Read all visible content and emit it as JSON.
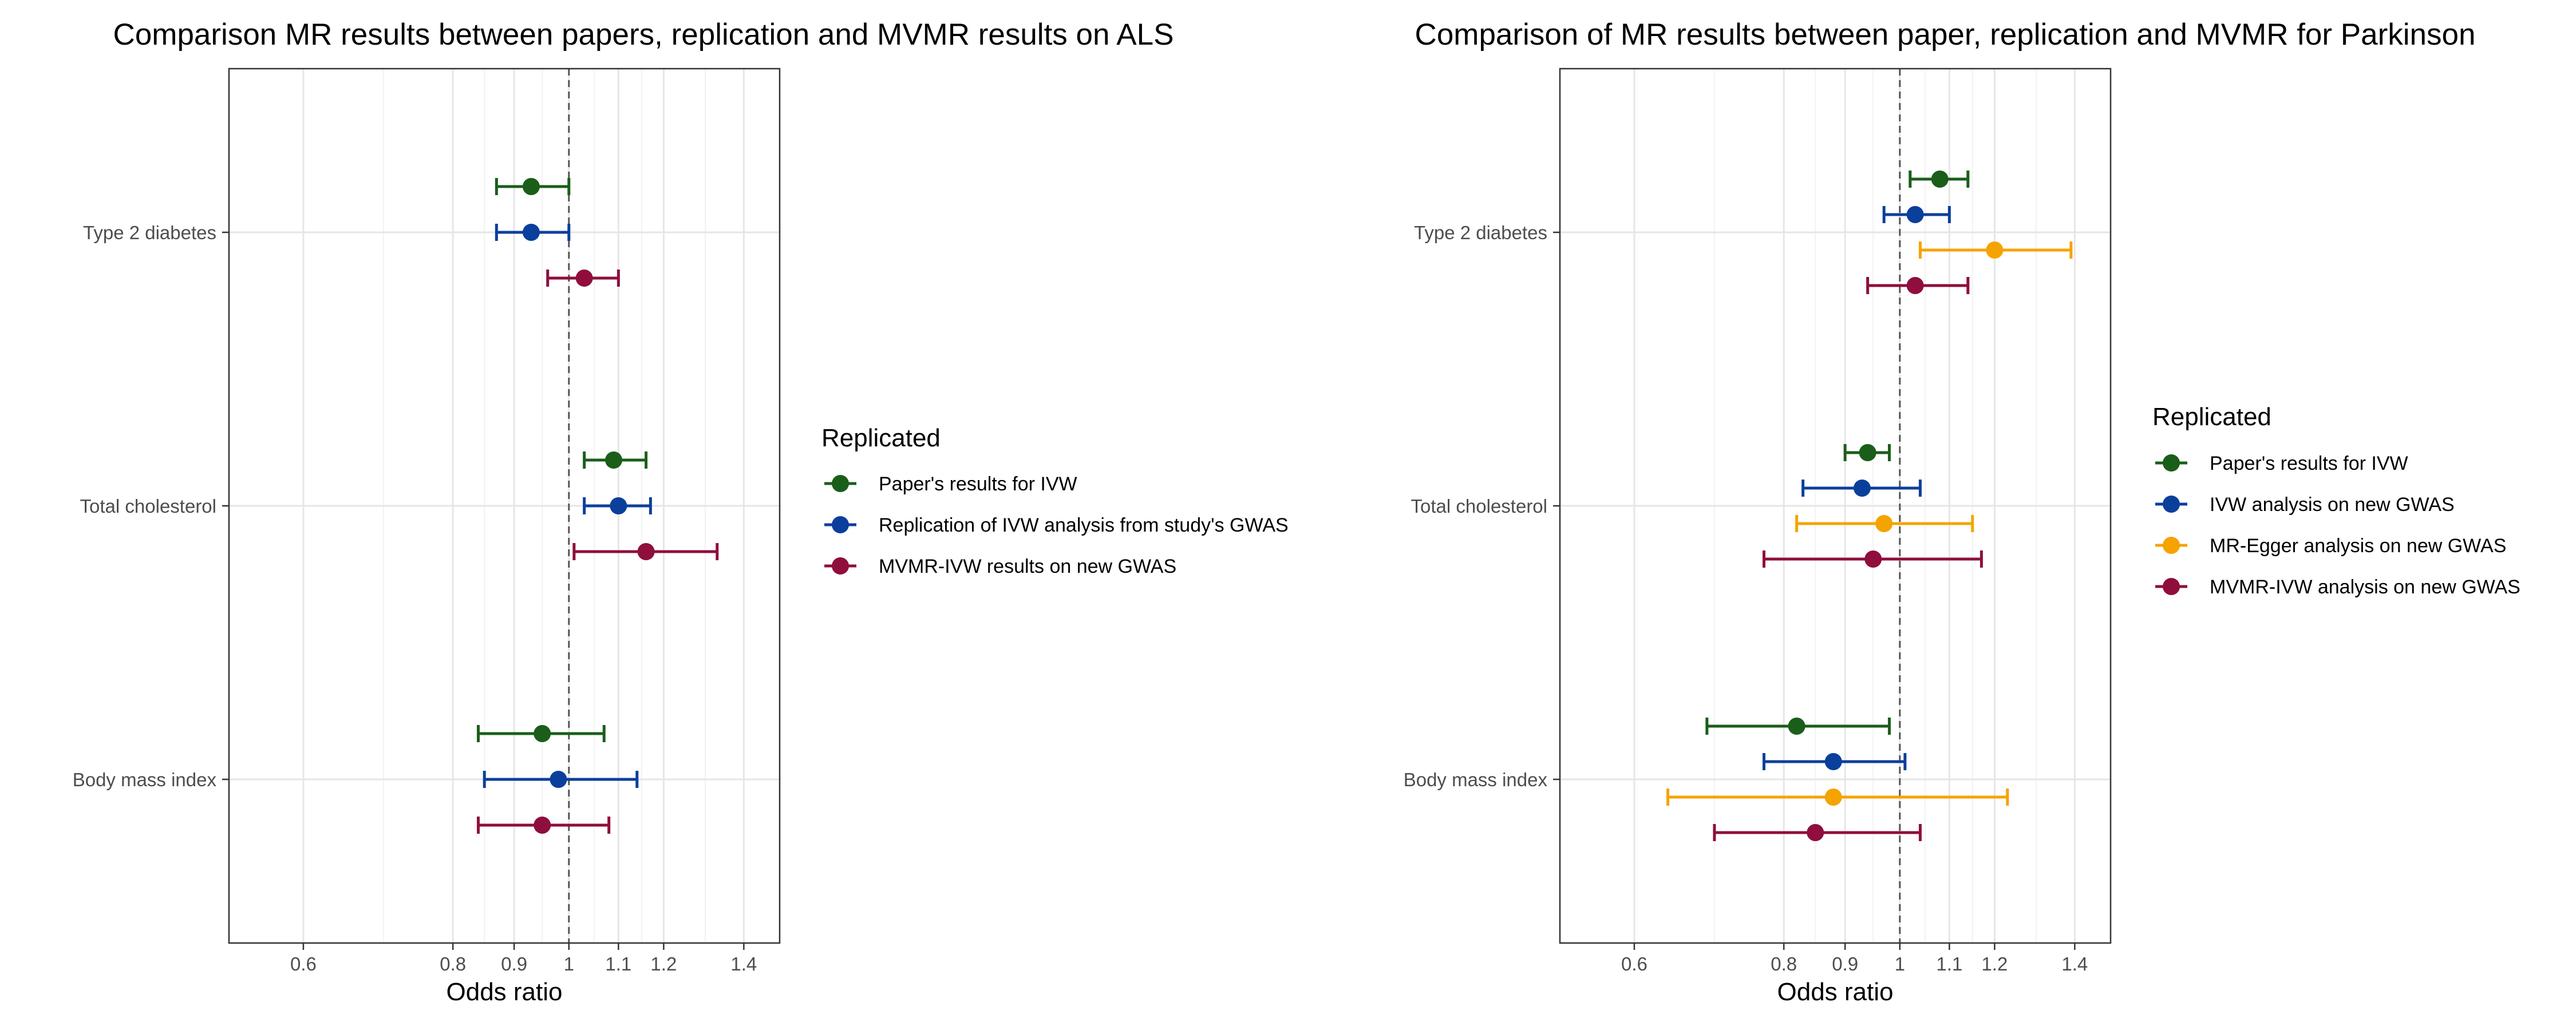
{
  "chart_data": [
    {
      "type": "forest",
      "title": "Comparison MR results between papers, replication and MVMR results on ALS",
      "xlabel": "Odds ratio",
      "ylabel": "",
      "xscale": "log",
      "xlim": [
        0.52,
        1.5
      ],
      "xticks": [
        "0.6",
        "0.8",
        "0.9",
        "1",
        "1.1",
        "1.2",
        "1.4"
      ],
      "reference_line": 1,
      "categories": [
        "Type 2 diabetes",
        "Total cholesterol",
        "Body mass index"
      ],
      "legend": {
        "title": "Replicated",
        "position": "right"
      },
      "series": [
        {
          "name": "Paper's results for IVW",
          "color": "#1a5e1a",
          "points": [
            {
              "category": "Type 2 diabetes",
              "or": 0.93,
              "lo": 0.87,
              "hi": 1.0
            },
            {
              "category": "Total cholesterol",
              "or": 1.09,
              "lo": 1.03,
              "hi": 1.16
            },
            {
              "category": "Body mass index",
              "or": 0.95,
              "lo": 0.84,
              "hi": 1.07
            }
          ]
        },
        {
          "name": "Replication of IVW analysis from study's GWAS",
          "color": "#0b3f9c",
          "points": [
            {
              "category": "Type 2 diabetes",
              "or": 0.93,
              "lo": 0.87,
              "hi": 1.0
            },
            {
              "category": "Total cholesterol",
              "or": 1.1,
              "lo": 1.03,
              "hi": 1.17
            },
            {
              "category": "Body mass index",
              "or": 0.98,
              "lo": 0.85,
              "hi": 1.14
            }
          ]
        },
        {
          "name": "MVMR-IVW results on new GWAS",
          "color": "#8f0e3e",
          "points": [
            {
              "category": "Type 2 diabetes",
              "or": 1.03,
              "lo": 0.96,
              "hi": 1.1
            },
            {
              "category": "Total cholesterol",
              "or": 1.16,
              "lo": 1.01,
              "hi": 1.33
            },
            {
              "category": "Body mass index",
              "or": 0.95,
              "lo": 0.84,
              "hi": 1.08
            }
          ]
        }
      ]
    },
    {
      "type": "forest",
      "title": "Comparison of MR results between paper, replication and MVMR for Parkinson",
      "xlabel": "Odds ratio",
      "ylabel": "",
      "xscale": "log",
      "xlim": [
        0.52,
        1.5
      ],
      "xticks": [
        "0.6",
        "0.8",
        "0.9",
        "1",
        "1.1",
        "1.2",
        "1.4"
      ],
      "reference_line": 1,
      "categories": [
        "Type 2 diabetes",
        "Total cholesterol",
        "Body mass index"
      ],
      "legend": {
        "title": "Replicated",
        "position": "right"
      },
      "series": [
        {
          "name": "Paper's results for IVW",
          "color": "#1a5e1a",
          "points": [
            {
              "category": "Type 2 diabetes",
              "or": 1.08,
              "lo": 1.02,
              "hi": 1.14
            },
            {
              "category": "Total cholesterol",
              "or": 0.94,
              "lo": 0.9,
              "hi": 0.98
            },
            {
              "category": "Body mass index",
              "or": 0.82,
              "lo": 0.69,
              "hi": 0.98
            }
          ]
        },
        {
          "name": "IVW analysis on new GWAS",
          "color": "#0b3f9c",
          "points": [
            {
              "category": "Type 2 diabetes",
              "or": 1.03,
              "lo": 0.97,
              "hi": 1.1
            },
            {
              "category": "Total cholesterol",
              "or": 0.93,
              "lo": 0.83,
              "hi": 1.04
            },
            {
              "category": "Body mass index",
              "or": 0.88,
              "lo": 0.77,
              "hi": 1.01
            }
          ]
        },
        {
          "name": "MR-Egger analysis on new GWAS",
          "color": "#f5a300",
          "points": [
            {
              "category": "Type 2 diabetes",
              "or": 1.2,
              "lo": 1.04,
              "hi": 1.39
            },
            {
              "category": "Total cholesterol",
              "or": 0.97,
              "lo": 0.82,
              "hi": 1.15
            },
            {
              "category": "Body mass index",
              "or": 0.88,
              "lo": 0.64,
              "hi": 1.23
            }
          ]
        },
        {
          "name": "MVMR-IVW analysis on new GWAS",
          "color": "#8f0e3e",
          "points": [
            {
              "category": "Type 2 diabetes",
              "or": 1.03,
              "lo": 0.94,
              "hi": 1.14
            },
            {
              "category": "Total cholesterol",
              "or": 0.95,
              "lo": 0.77,
              "hi": 1.17
            },
            {
              "category": "Body mass index",
              "or": 0.85,
              "lo": 0.7,
              "hi": 1.04
            }
          ]
        }
      ]
    }
  ]
}
